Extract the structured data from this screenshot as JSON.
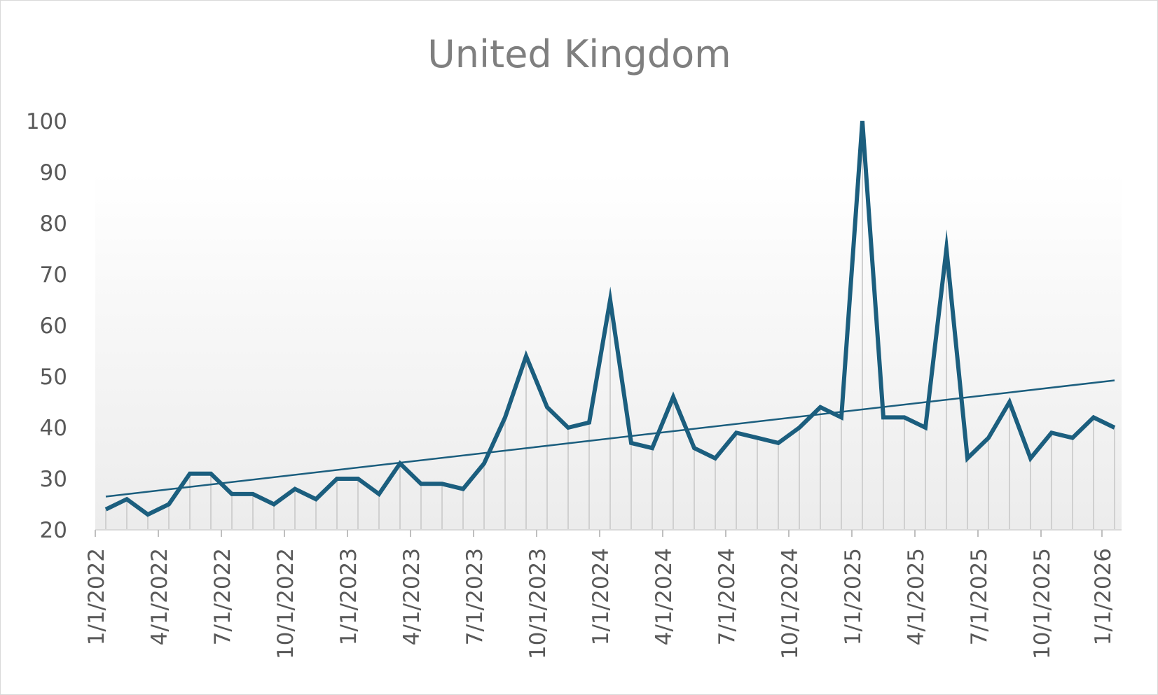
{
  "chart_data": {
    "type": "line",
    "title": "United Kingdom",
    "xlabel": "",
    "ylabel": "",
    "ylim": [
      20,
      100
    ],
    "yticks": [
      20,
      30,
      40,
      50,
      60,
      70,
      80,
      90,
      100
    ],
    "x_start": "1/1/2022",
    "x_tick_labels": [
      "1/1/2022",
      "4/1/2022",
      "7/1/2022",
      "10/1/2022",
      "1/1/2023",
      "4/1/2023",
      "7/1/2023",
      "10/1/2023",
      "1/1/2024",
      "4/1/2024",
      "7/1/2024",
      "10/1/2024",
      "1/1/2025",
      "4/1/2025",
      "7/1/2025",
      "10/1/2025",
      "1/1/2026"
    ],
    "grid": false,
    "legend": "none",
    "series": [
      {
        "values": [
          24,
          26,
          23,
          25,
          31,
          31,
          27,
          27,
          25,
          28,
          26,
          30,
          30,
          27,
          33,
          29,
          29,
          28,
          33,
          42,
          54,
          44,
          40,
          41,
          65,
          37,
          36,
          46,
          36,
          34,
          39,
          38,
          37,
          40,
          44,
          42,
          100,
          42,
          42,
          40,
          75,
          34,
          38,
          45,
          34,
          39,
          38,
          42,
          40
        ],
        "color": "#1b5e7e"
      }
    ],
    "trendline": {
      "type": "linear",
      "color": "#1b5e7e"
    },
    "drop_lines": true
  }
}
